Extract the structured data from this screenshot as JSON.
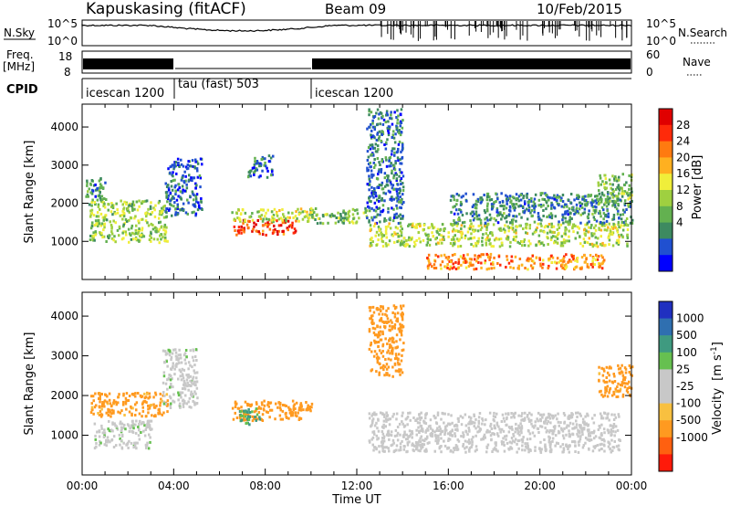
{
  "header": {
    "station": "Kapuskasing (fitACF)",
    "beam": "Beam 09",
    "date": "10/Feb/2015"
  },
  "panels": {
    "nsky": {
      "left_label": "N.Sky",
      "left_ticks": [
        "10^5",
        "10^0"
      ],
      "right_label": "N.Search",
      "right_ticks": [
        "10^5",
        "10^0"
      ]
    },
    "freq": {
      "left_label_top": "Freq.",
      "left_label_bottom": "[MHz]",
      "left_ticks": [
        "18",
        "8"
      ],
      "right_label": "Nave",
      "right_ticks": [
        "60",
        "0"
      ]
    },
    "cpid": {
      "label": "CPID",
      "modes": [
        {
          "name": "icescan 1200",
          "start_h": 0,
          "end_h": 4
        },
        {
          "name": "tau (fast) 503",
          "start_h": 4,
          "end_h": 10
        },
        {
          "name": "icescan 1200",
          "start_h": 10,
          "end_h": 24
        }
      ]
    }
  },
  "chart_data": [
    {
      "type": "heatmap",
      "name": "power",
      "ylabel": "Slant Range [km]",
      "ylim": [
        0,
        4600
      ],
      "yticks": [
        "1000",
        "2000",
        "3000",
        "4000"
      ],
      "xlim": [
        0,
        24
      ],
      "colorbar": {
        "label": "Power [dB]",
        "ticks": [
          "28",
          "24",
          "20",
          "16",
          "12",
          "8",
          "4"
        ],
        "range": [
          0,
          32
        ],
        "colors": [
          "#0000ff",
          "#2050d0",
          "#3d8a60",
          "#63b150",
          "#9fd040",
          "#f0ee3a",
          "#ffb020",
          "#ff7a10",
          "#ff2a0a",
          "#e00000"
        ]
      },
      "echo_regions": [
        {
          "t0": 0.3,
          "t1": 3.7,
          "r0": 1000,
          "r1": 2100,
          "power": 14
        },
        {
          "t0": 0.1,
          "t1": 1.0,
          "r0": 2000,
          "r1": 2700,
          "power": 8
        },
        {
          "t0": 3.6,
          "t1": 5.2,
          "r0": 1700,
          "r1": 3200,
          "power": 6
        },
        {
          "t0": 6.6,
          "t1": 9.3,
          "r0": 1200,
          "r1": 1600,
          "power": 27
        },
        {
          "t0": 6.5,
          "t1": 10.0,
          "r0": 1550,
          "r1": 1900,
          "power": 15
        },
        {
          "t0": 7.2,
          "t1": 8.3,
          "r0": 2700,
          "r1": 3300,
          "power": 6
        },
        {
          "t0": 10.0,
          "t1": 12.4,
          "r0": 1500,
          "r1": 1900,
          "power": 12
        },
        {
          "t0": 12.4,
          "t1": 14.0,
          "r0": 1500,
          "r1": 4500,
          "power": 7
        },
        {
          "t0": 12.5,
          "t1": 23.8,
          "r0": 900,
          "r1": 1500,
          "power": 15
        },
        {
          "t0": 15.0,
          "t1": 22.8,
          "r0": 300,
          "r1": 700,
          "power": 23
        },
        {
          "t0": 16.0,
          "t1": 24.0,
          "r0": 1500,
          "r1": 2300,
          "power": 8
        },
        {
          "t0": 22.5,
          "t1": 24.0,
          "r0": 2000,
          "r1": 2800,
          "power": 12
        }
      ]
    },
    {
      "type": "heatmap",
      "name": "velocity",
      "ylabel": "Slant Range [km]",
      "ylim": [
        0,
        4600
      ],
      "yticks": [
        "1000",
        "2000",
        "3000",
        "4000"
      ],
      "xlabel": "Time UT",
      "xlim": [
        0,
        24
      ],
      "xticks": [
        "00:00",
        "04:00",
        "08:00",
        "12:00",
        "16:00",
        "20:00",
        "00:00"
      ],
      "colorbar": {
        "label_main": "Velocity",
        "label_unit": "[m s",
        "label_exp": "-1",
        "label_close": "]",
        "ticks": [
          "1000",
          "500",
          "100",
          "25",
          "-25",
          "-100",
          "-500",
          "-1000"
        ],
        "colors": [
          "#2030c0",
          "#2f6fb0",
          "#3f9a80",
          "#66c050",
          "#c8c8c8",
          "#c8c8c8",
          "#f8c040",
          "#ff9a20",
          "#ff6010",
          "#ff1a0a"
        ]
      },
      "echo_regions": [
        {
          "t0": 0.3,
          "t1": 3.7,
          "r0": 1500,
          "r1": 2100,
          "v": -150
        },
        {
          "t0": 0.5,
          "t1": 3.0,
          "r0": 700,
          "r1": 1400,
          "v": 10
        },
        {
          "t0": 3.5,
          "t1": 5.0,
          "r0": 1700,
          "r1": 3200,
          "v": 10
        },
        {
          "t0": 6.5,
          "t1": 10.0,
          "r0": 1400,
          "r1": 1900,
          "v": -200
        },
        {
          "t0": 6.8,
          "t1": 7.8,
          "r0": 1300,
          "r1": 1700,
          "v": 120
        },
        {
          "t0": 12.5,
          "t1": 14.0,
          "r0": 2500,
          "r1": 4300,
          "v": -300
        },
        {
          "t0": 12.5,
          "t1": 23.5,
          "r0": 600,
          "r1": 1600,
          "v": 5
        },
        {
          "t0": 22.5,
          "t1": 24.0,
          "r0": 2000,
          "r1": 2800,
          "v": -150
        }
      ]
    }
  ]
}
